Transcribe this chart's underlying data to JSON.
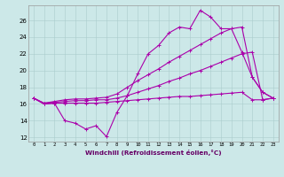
{
  "bg_color": "#cce8e8",
  "line_color": "#aa00aa",
  "xlim_min": -0.5,
  "xlim_max": 23.5,
  "ylim_min": 11.5,
  "ylim_max": 27.8,
  "yticks": [
    12,
    14,
    16,
    18,
    20,
    22,
    24,
    26
  ],
  "xticks": [
    0,
    1,
    2,
    3,
    4,
    5,
    6,
    7,
    8,
    9,
    10,
    11,
    12,
    13,
    14,
    15,
    16,
    17,
    18,
    19,
    20,
    21,
    22,
    23
  ],
  "xlabel": "Windchill (Refroidissement éolien,°C)",
  "series": [
    [
      16.7,
      16.0,
      16.1,
      14.0,
      13.7,
      13.0,
      13.4,
      12.1,
      15.0,
      17.0,
      19.6,
      22.0,
      23.0,
      24.5,
      25.2,
      25.0,
      27.2,
      26.4,
      25.0,
      25.0,
      22.2,
      19.2,
      17.4,
      16.7
    ],
    [
      16.7,
      16.1,
      16.2,
      16.3,
      16.4,
      16.4,
      16.5,
      16.5,
      16.7,
      17.0,
      17.4,
      17.8,
      18.2,
      18.7,
      19.1,
      19.6,
      20.0,
      20.5,
      21.0,
      21.5,
      22.0,
      22.2,
      16.5,
      16.7
    ],
    [
      16.7,
      16.1,
      16.3,
      16.5,
      16.6,
      16.6,
      16.7,
      16.8,
      17.2,
      18.0,
      18.8,
      19.5,
      20.2,
      21.0,
      21.7,
      22.4,
      23.1,
      23.8,
      24.5,
      25.0,
      25.2,
      19.2,
      17.4,
      16.7
    ],
    [
      16.7,
      16.0,
      16.1,
      16.1,
      16.1,
      16.1,
      16.1,
      16.2,
      16.3,
      16.4,
      16.5,
      16.6,
      16.7,
      16.8,
      16.9,
      16.9,
      17.0,
      17.1,
      17.2,
      17.3,
      17.4,
      16.5,
      16.5,
      16.7
    ]
  ]
}
